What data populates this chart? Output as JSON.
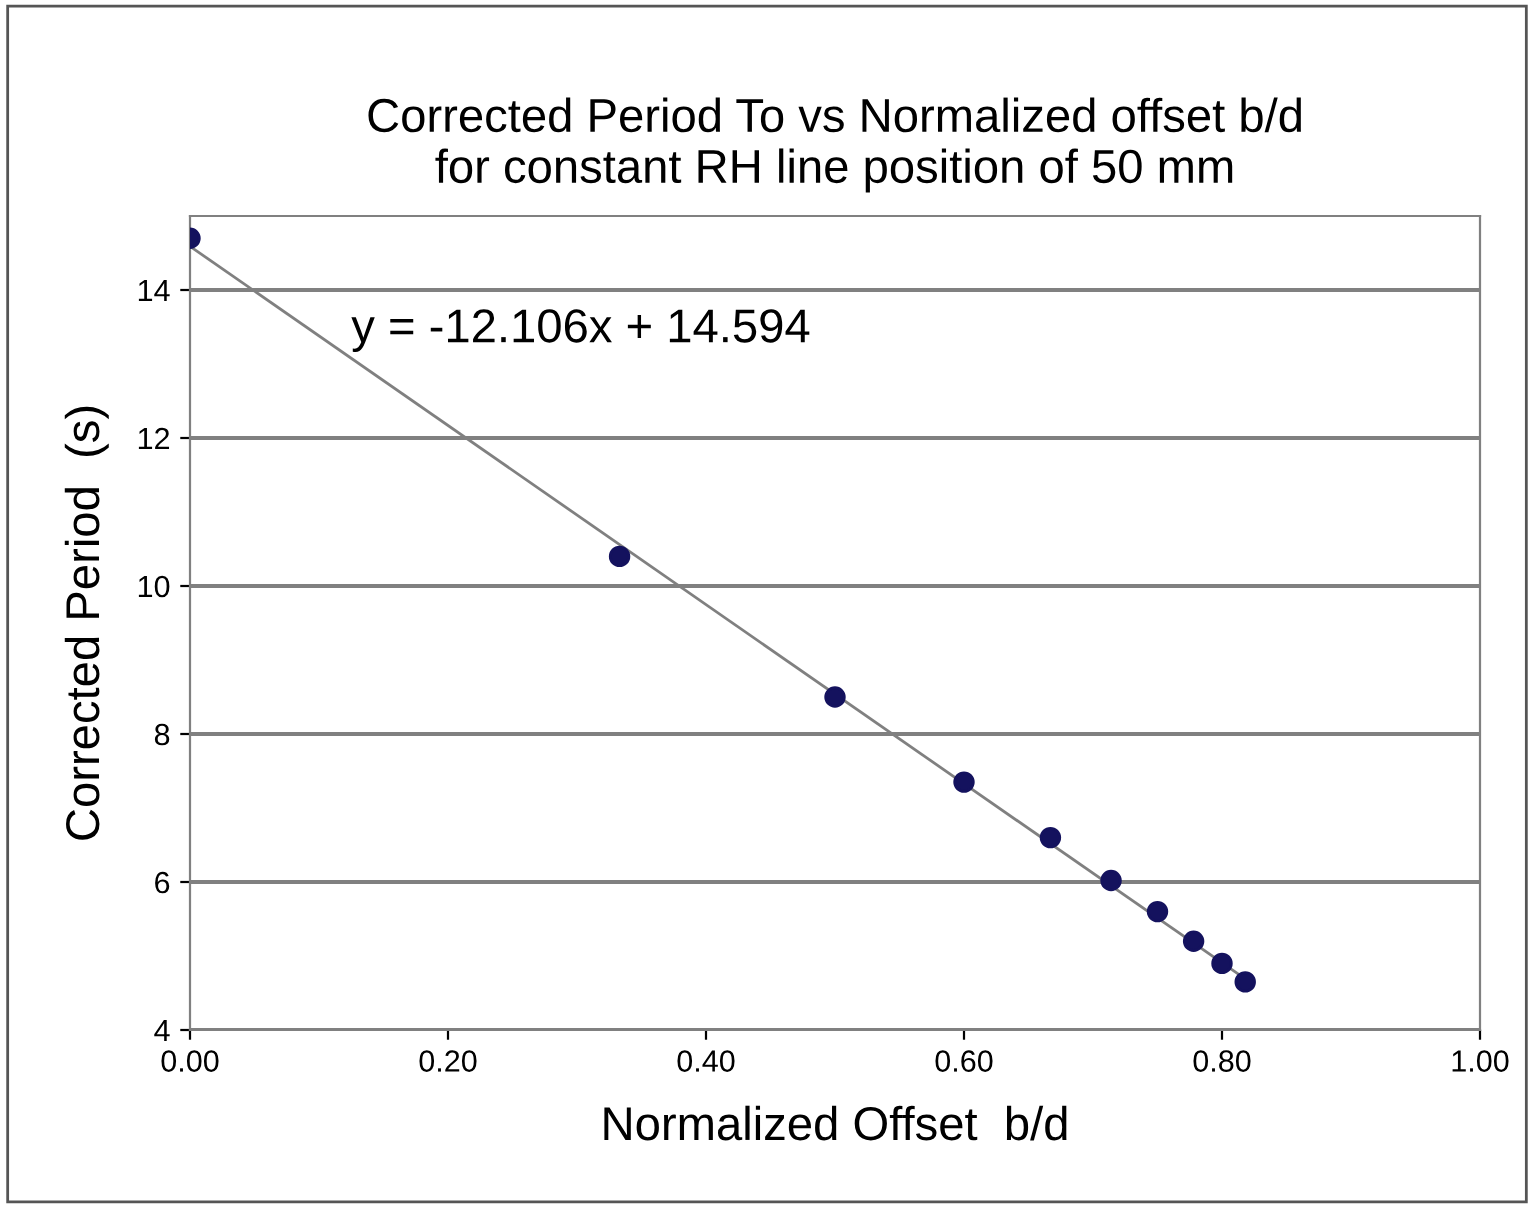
{
  "chart_data": {
    "type": "scatter",
    "title": "Corrected Period To vs Normalized offset b/d\nfor constant RH line position of 50 mm",
    "xlabel": "Normalized Offset  b/d",
    "ylabel": "Corrected Period  (s)",
    "annotations": [
      "y = -12.106x + 14.594"
    ],
    "series": [
      {
        "color": "#14125e",
        "marker": "circle",
        "x": [
          0,
          0.333,
          0.5,
          0.6,
          0.667,
          0.714,
          0.75,
          0.778,
          0.8,
          0.818
        ],
        "values": [
          14.7,
          10.4,
          8.5,
          7.35,
          6.6,
          6.02,
          5.6,
          5.2,
          4.9,
          4.65
        ]
      },
      {
        "type": "line",
        "color": "#808080",
        "line_style": "solid",
        "x": [
          0,
          0.818
        ],
        "values": [
          14.59,
          4.69
        ]
      }
    ],
    "xlim": [
      0,
      1
    ],
    "xticks": [
      {
        "value": 0,
        "label": "0.00"
      },
      {
        "value": 0.2,
        "label": "0.20"
      },
      {
        "value": 0.4,
        "label": "0.40"
      },
      {
        "value": 0.6,
        "label": "0.60"
      },
      {
        "value": 0.8,
        "label": "0.80"
      },
      {
        "value": 1,
        "label": "1.00"
      }
    ],
    "ylim": [
      4,
      15
    ],
    "yticks": [
      4,
      6,
      8,
      10,
      12,
      14
    ],
    "grid": "y"
  }
}
